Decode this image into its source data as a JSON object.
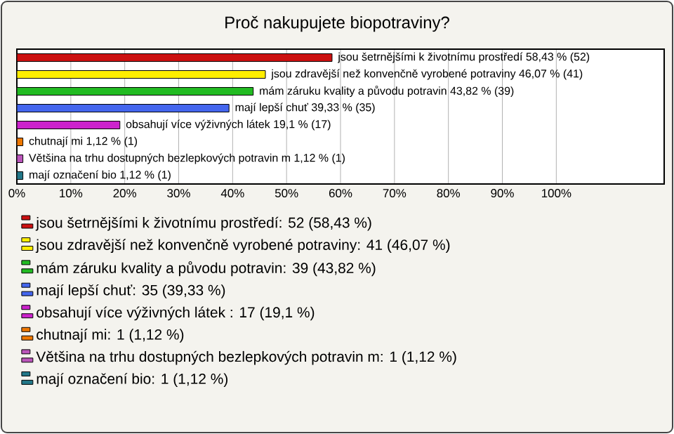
{
  "chart_data": {
    "type": "bar",
    "orientation": "horizontal",
    "title": "Proč nakupujete biopotraviny?",
    "categories": [
      null,
      null,
      null,
      null,
      null,
      null,
      null,
      null
    ],
    "series": [
      {
        "name": "jsou šetrnějšími k životnímu prostředí: 52 (58,43 %)",
        "color": "#cc1111",
        "values": [
          58.43,
          null,
          null,
          null,
          null,
          null,
          null,
          null
        ],
        "value_labels": [
          "jsou šetrnějšími k životnímu prostředí 58,43 % (52)",
          null,
          null,
          null,
          null,
          null,
          null,
          null
        ]
      },
      {
        "name": "jsou zdravější než konvenčně vyrobené potraviny: 41 (46,07 %)",
        "color": "#ffee00",
        "values": [
          null,
          46.07,
          null,
          null,
          null,
          null,
          null,
          null
        ],
        "value_labels": [
          null,
          "jsou zdravější než konvenčně vyrobené potraviny 46,07 % (41)",
          null,
          null,
          null,
          null,
          null,
          null
        ]
      },
      {
        "name": "mám záruku kvality a původu potravin: 39 (43,82 %)",
        "color": "#22bb22",
        "values": [
          null,
          null,
          43.82,
          null,
          null,
          null,
          null,
          null
        ],
        "value_labels": [
          null,
          null,
          "mám záruku kvality a původu potravin 43,82 % (39)",
          null,
          null,
          null,
          null,
          null
        ]
      },
      {
        "name": "mají lepší chuť: 35 (39,33 %)",
        "color": "#4466ee",
        "values": [
          null,
          null,
          null,
          39.33,
          null,
          null,
          null,
          null
        ],
        "value_labels": [
          null,
          null,
          null,
          "mají lepší chuť 39,33 % (35)",
          null,
          null,
          null,
          null
        ]
      },
      {
        "name": "obsahují více výživných látek : 17 (19,1 %)",
        "color": "#cc22cc",
        "values": [
          null,
          null,
          null,
          null,
          19.1,
          null,
          null,
          null
        ],
        "value_labels": [
          null,
          null,
          null,
          null,
          "obsahují více výživných látek  19,1 % (17)",
          null,
          null,
          null
        ]
      },
      {
        "name": "chutnají mi: 1 (1,12 %)",
        "color": "#ee7700",
        "values": [
          null,
          null,
          null,
          null,
          null,
          1.12,
          null,
          null
        ],
        "value_labels": [
          null,
          null,
          null,
          null,
          null,
          "chutnají mi 1,12 % (1)",
          null,
          null
        ]
      },
      {
        "name": "Většina na trhu dostupných bezlepkových potravin m: 1 (1,12 %)",
        "color": "#bb55bb",
        "values": [
          null,
          null,
          null,
          null,
          null,
          null,
          1.12,
          null
        ],
        "value_labels": [
          null,
          null,
          null,
          null,
          null,
          null,
          "Většina na trhu dostupných bezlepkových potravin m 1,12 % (1)",
          null
        ]
      },
      {
        "name": "mají označení bio: 1 (1,12 %)",
        "color": "#227788",
        "values": [
          null,
          null,
          null,
          null,
          null,
          null,
          null,
          1.12
        ],
        "value_labels": [
          null,
          null,
          null,
          null,
          null,
          null,
          null,
          "mají označení bio 1,12 % (1)"
        ]
      }
    ],
    "xlim": [
      0,
      120
    ],
    "xticks": [
      {
        "value": 0,
        "label": "0%"
      },
      {
        "value": 10,
        "label": "10%"
      },
      {
        "value": 20,
        "label": "20%"
      },
      {
        "value": 30,
        "label": "30%"
      },
      {
        "value": 40,
        "label": "40%"
      },
      {
        "value": 50,
        "label": "50%"
      },
      {
        "value": 60,
        "label": "60%"
      },
      {
        "value": 70,
        "label": "70%"
      },
      {
        "value": 80,
        "label": "80%"
      },
      {
        "value": 90,
        "label": "90%"
      },
      {
        "value": 100,
        "label": "100%"
      }
    ],
    "grid": "x",
    "legend": "bottom"
  }
}
